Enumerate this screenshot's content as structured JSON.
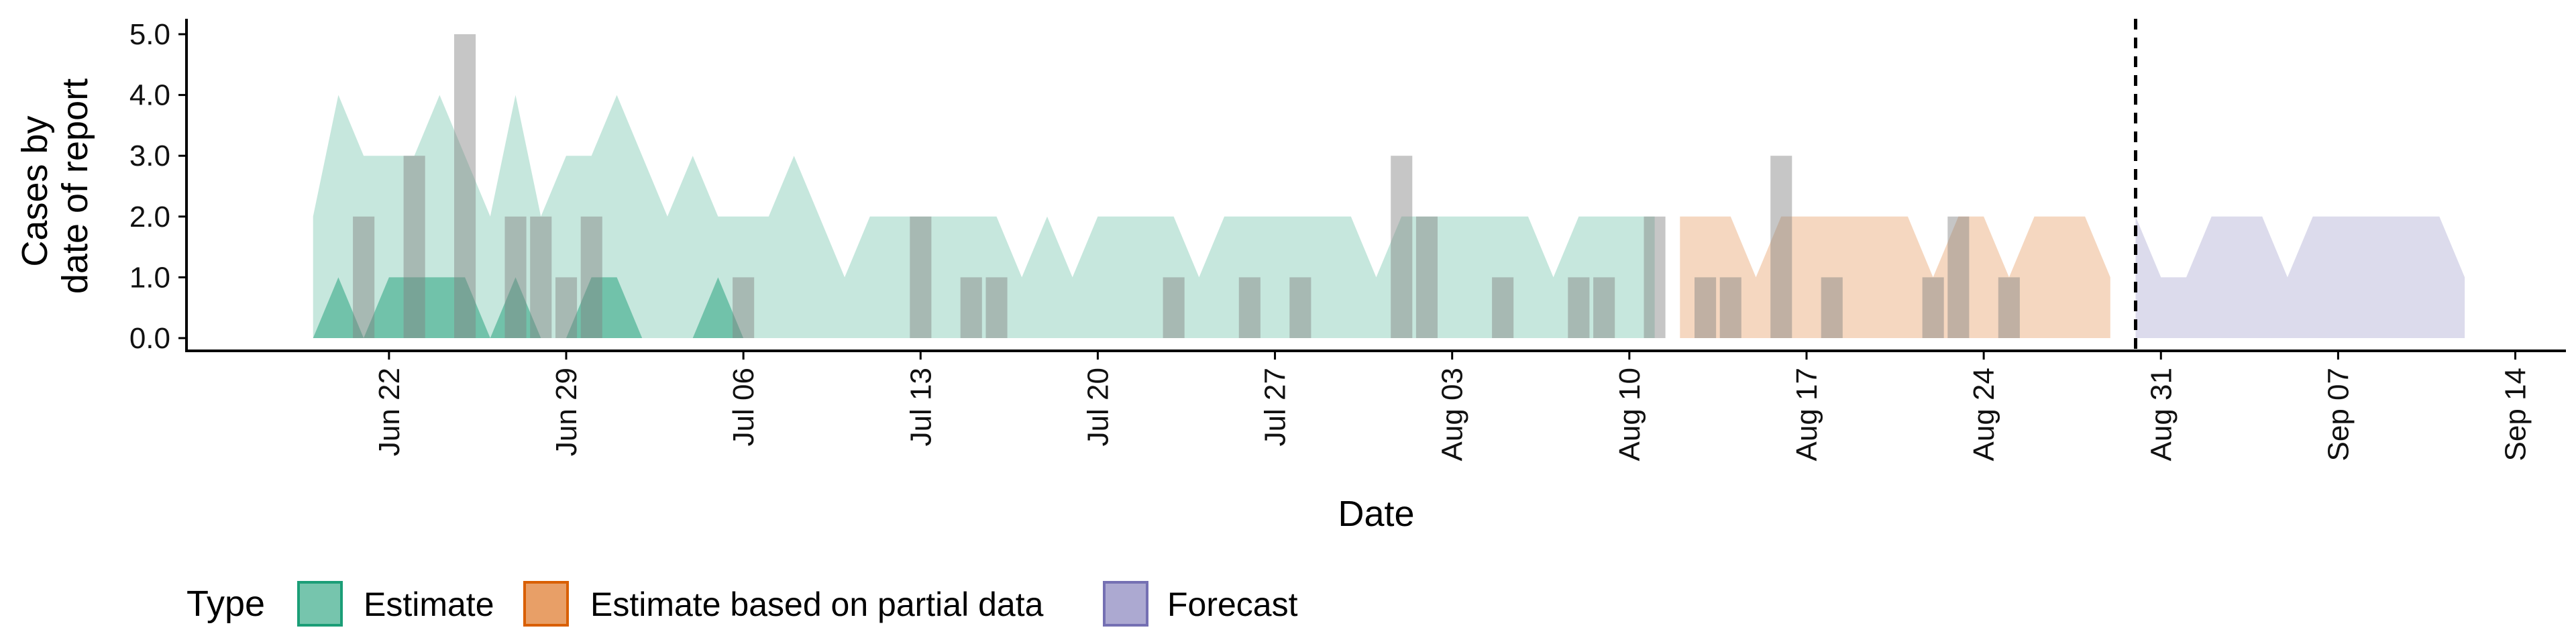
{
  "chart_data": {
    "type": "area",
    "title": "",
    "xlabel": "Date",
    "ylabel_lines": [
      "Cases by",
      "date of report"
    ],
    "ylim": [
      0,
      5
    ],
    "yticks": [
      "0.0",
      "1.0",
      "2.0",
      "3.0",
      "4.0",
      "5.0"
    ],
    "ytick_values": [
      0,
      1,
      2,
      3,
      4,
      5
    ],
    "xlim": [
      "2020-06-14",
      "2020-09-16"
    ],
    "xticks": [
      {
        "date": "2020-06-22",
        "label": "Jun 22"
      },
      {
        "date": "2020-06-29",
        "label": "Jun 29"
      },
      {
        "date": "2020-07-06",
        "label": "Jul 06"
      },
      {
        "date": "2020-07-13",
        "label": "Jul 13"
      },
      {
        "date": "2020-07-20",
        "label": "Jul 20"
      },
      {
        "date": "2020-07-27",
        "label": "Jul 27"
      },
      {
        "date": "2020-08-03",
        "label": "Aug 03"
      },
      {
        "date": "2020-08-10",
        "label": "Aug 10"
      },
      {
        "date": "2020-08-17",
        "label": "Aug 17"
      },
      {
        "date": "2020-08-24",
        "label": "Aug 24"
      },
      {
        "date": "2020-08-31",
        "label": "Aug 31"
      },
      {
        "date": "2020-09-07",
        "label": "Sep 07"
      },
      {
        "date": "2020-09-14",
        "label": "Sep 14"
      }
    ],
    "forecast_date": "2020-08-30",
    "reported_cases": [
      {
        "date": "2020-06-21",
        "value": 2
      },
      {
        "date": "2020-06-23",
        "value": 3
      },
      {
        "date": "2020-06-25",
        "value": 5
      },
      {
        "date": "2020-06-27",
        "value": 2
      },
      {
        "date": "2020-06-28",
        "value": 2
      },
      {
        "date": "2020-06-29",
        "value": 1
      },
      {
        "date": "2020-06-30",
        "value": 2
      },
      {
        "date": "2020-07-06",
        "value": 1
      },
      {
        "date": "2020-07-13",
        "value": 2
      },
      {
        "date": "2020-07-15",
        "value": 1
      },
      {
        "date": "2020-07-16",
        "value": 1
      },
      {
        "date": "2020-07-23",
        "value": 1
      },
      {
        "date": "2020-07-26",
        "value": 1
      },
      {
        "date": "2020-07-28",
        "value": 1
      },
      {
        "date": "2020-08-01",
        "value": 3
      },
      {
        "date": "2020-08-02",
        "value": 2
      },
      {
        "date": "2020-08-05",
        "value": 1
      },
      {
        "date": "2020-08-08",
        "value": 1
      },
      {
        "date": "2020-08-09",
        "value": 1
      },
      {
        "date": "2020-08-11",
        "value": 2
      },
      {
        "date": "2020-08-13",
        "value": 1
      },
      {
        "date": "2020-08-14",
        "value": 1
      },
      {
        "date": "2020-08-16",
        "value": 3
      },
      {
        "date": "2020-08-18",
        "value": 1
      },
      {
        "date": "2020-08-22",
        "value": 1
      },
      {
        "date": "2020-08-23",
        "value": 2
      },
      {
        "date": "2020-08-25",
        "value": 1
      }
    ],
    "series": [
      {
        "name": "Estimate",
        "color": "#1b9e77",
        "bands": [
          {
            "opacity": 0.25,
            "x": [
              "2020-06-19",
              "2020-06-20",
              "2020-06-21",
              "2020-06-22",
              "2020-06-23",
              "2020-06-24",
              "2020-06-25",
              "2020-06-26",
              "2020-06-27",
              "2020-06-28",
              "2020-06-29",
              "2020-06-30",
              "2020-07-01",
              "2020-07-02",
              "2020-07-03",
              "2020-07-04",
              "2020-07-05",
              "2020-07-06",
              "2020-07-07",
              "2020-07-08",
              "2020-07-09",
              "2020-07-10",
              "2020-07-11",
              "2020-07-12",
              "2020-07-13",
              "2020-07-14",
              "2020-07-15",
              "2020-07-16",
              "2020-07-17",
              "2020-07-18",
              "2020-07-19",
              "2020-07-20",
              "2020-07-21",
              "2020-07-22",
              "2020-07-23",
              "2020-07-24",
              "2020-07-25",
              "2020-07-26",
              "2020-07-27",
              "2020-07-28",
              "2020-07-29",
              "2020-07-30",
              "2020-07-31",
              "2020-08-01",
              "2020-08-02",
              "2020-08-03",
              "2020-08-04",
              "2020-08-05",
              "2020-08-06",
              "2020-08-07",
              "2020-08-08",
              "2020-08-09",
              "2020-08-10",
              "2020-08-11"
            ],
            "lower": [
              0,
              0,
              0,
              0,
              0,
              0,
              0,
              0,
              0,
              0,
              0,
              0,
              0,
              0,
              0,
              0,
              0,
              0,
              0,
              0,
              0,
              0,
              0,
              0,
              0,
              0,
              0,
              0,
              0,
              0,
              0,
              0,
              0,
              0,
              0,
              0,
              0,
              0,
              0,
              0,
              0,
              0,
              0,
              0,
              0,
              0,
              0,
              0,
              0,
              0,
              0,
              0,
              0,
              0
            ],
            "upper": [
              2,
              4,
              3,
              3,
              3,
              4,
              3,
              2,
              4,
              2,
              3,
              3,
              4,
              3,
              2,
              3,
              2,
              2,
              2,
              3,
              2,
              1,
              2,
              2,
              2,
              2,
              2,
              2,
              1,
              2,
              1,
              2,
              2,
              2,
              2,
              1,
              2,
              2,
              2,
              2,
              2,
              2,
              1,
              2,
              2,
              2,
              2,
              2,
              2,
              1,
              2,
              2,
              2,
              2
            ]
          },
          {
            "opacity": 0.5,
            "x": [
              "2020-06-19",
              "2020-06-20",
              "2020-06-21",
              "2020-06-22",
              "2020-06-23",
              "2020-06-24",
              "2020-06-25",
              "2020-06-26",
              "2020-06-27",
              "2020-06-28",
              "2020-06-29",
              "2020-06-30",
              "2020-07-01",
              "2020-07-02",
              "2020-07-03",
              "2020-07-04",
              "2020-07-05",
              "2020-07-06"
            ],
            "lower": [
              0,
              0,
              0,
              0,
              0,
              0,
              0,
              0,
              0,
              0,
              0,
              0,
              0,
              0,
              0,
              0,
              0,
              0
            ],
            "upper": [
              0,
              1,
              0,
              1,
              1,
              1,
              1,
              0,
              1,
              0,
              0,
              1,
              1,
              0,
              0,
              0,
              1,
              0
            ]
          }
        ]
      },
      {
        "name": "Estimate based on partial data",
        "color": "#d95f02",
        "bands": [
          {
            "opacity": 0.25,
            "x": [
              "2020-08-12",
              "2020-08-13",
              "2020-08-14",
              "2020-08-15",
              "2020-08-16",
              "2020-08-17",
              "2020-08-18",
              "2020-08-19",
              "2020-08-20",
              "2020-08-21",
              "2020-08-22",
              "2020-08-23",
              "2020-08-24",
              "2020-08-25",
              "2020-08-26",
              "2020-08-27",
              "2020-08-28",
              "2020-08-29"
            ],
            "lower": [
              0,
              0,
              0,
              0,
              0,
              0,
              0,
              0,
              0,
              0,
              0,
              0,
              0,
              0,
              0,
              0,
              0,
              0
            ],
            "upper": [
              2,
              2,
              2,
              1,
              2,
              2,
              2,
              2,
              2,
              2,
              1,
              2,
              2,
              1,
              2,
              2,
              2,
              1
            ]
          }
        ]
      },
      {
        "name": "Forecast",
        "color": "#7570b3",
        "bands": [
          {
            "opacity": 0.25,
            "x": [
              "2020-08-30",
              "2020-08-31",
              "2020-09-01",
              "2020-09-02",
              "2020-09-03",
              "2020-09-04",
              "2020-09-05",
              "2020-09-06",
              "2020-09-07",
              "2020-09-08",
              "2020-09-09",
              "2020-09-10",
              "2020-09-11",
              "2020-09-12"
            ],
            "lower": [
              0,
              0,
              0,
              0,
              0,
              0,
              0,
              0,
              0,
              0,
              0,
              0,
              0,
              0
            ],
            "upper": [
              2,
              1,
              1,
              2,
              2,
              2,
              1,
              2,
              2,
              2,
              2,
              2,
              2,
              1
            ]
          }
        ]
      }
    ],
    "bar_color": "#808080",
    "legend": {
      "title": "Type",
      "position": "bottom",
      "items": [
        "Estimate",
        "Estimate based on partial data",
        "Forecast"
      ]
    },
    "grid": false
  }
}
